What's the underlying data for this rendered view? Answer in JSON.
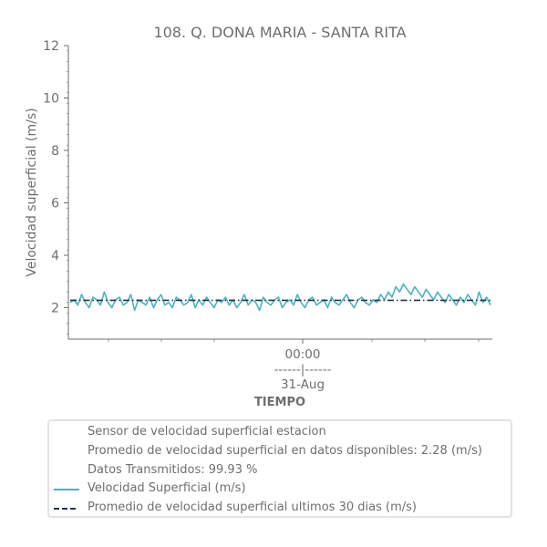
{
  "chart_data": {
    "type": "line",
    "title": "108. Q. DONA MARIA - SANTA RITA",
    "xlabel": "TIEMPO",
    "ylabel": "Velocidad superficial (m/s)",
    "ylim": [
      0.8,
      12
    ],
    "yticks": [
      2,
      4,
      6,
      8,
      10,
      12
    ],
    "xticks": [
      {
        "label_lines": [
          "00:00",
          "------|------",
          "31-Aug"
        ]
      }
    ],
    "grid": false,
    "legend_placement": "bottom",
    "colors": {
      "series": "#4bb3c0",
      "average": "#24344d",
      "axis": "#6e6e6e"
    },
    "series": [
      {
        "name": "Velocidad Superficial (m/s)",
        "style": "solid",
        "values": [
          2.2,
          2.3,
          2.1,
          2.5,
          2.2,
          2.0,
          2.4,
          2.3,
          2.1,
          2.6,
          2.2,
          2.0,
          2.3,
          2.4,
          2.1,
          2.2,
          2.5,
          1.9,
          2.3,
          2.2,
          2.1,
          2.4,
          2.0,
          2.3,
          2.5,
          2.1,
          2.2,
          2.0,
          2.4,
          2.3,
          2.1,
          2.2,
          2.5,
          2.0,
          2.3,
          2.1,
          2.4,
          2.2,
          2.0,
          2.3,
          2.2,
          2.4,
          2.1,
          2.3,
          2.0,
          2.2,
          2.5,
          2.1,
          2.3,
          2.2,
          1.9,
          2.4,
          2.2,
          2.1,
          2.3,
          2.4,
          2.0,
          2.2,
          2.3,
          2.1,
          2.5,
          2.2,
          2.0,
          2.3,
          2.4,
          2.1,
          2.2,
          2.3,
          2.0,
          2.4,
          2.2,
          2.1,
          2.3,
          2.5,
          2.2,
          2.0,
          2.3,
          2.4,
          2.2,
          2.1,
          2.3,
          2.2,
          2.5,
          2.3,
          2.6,
          2.4,
          2.8,
          2.6,
          2.9,
          2.7,
          2.5,
          2.8,
          2.6,
          2.4,
          2.7,
          2.5,
          2.3,
          2.6,
          2.4,
          2.2,
          2.5,
          2.3,
          2.1,
          2.4,
          2.2,
          2.5,
          2.3,
          2.1,
          2.6,
          2.2,
          2.4,
          2.1
        ]
      },
      {
        "name": "Promedio de velocidad superficial ultimos 30 dias (m/s)",
        "style": "dashdot",
        "values": [
          2.28,
          2.28
        ]
      }
    ]
  },
  "legend": {
    "items": [
      {
        "text": "Sensor de velocidad superficial estacion"
      },
      {
        "text": "Promedio de velocidad superficial en datos disponibles: 2.28 (m/s)"
      },
      {
        "text": "Datos Transmitidos: 99.93 %"
      },
      {
        "text": "Velocidad Superficial (m/s)"
      },
      {
        "text": "Promedio de velocidad superficial ultimos 30 dias (m/s)"
      }
    ]
  }
}
